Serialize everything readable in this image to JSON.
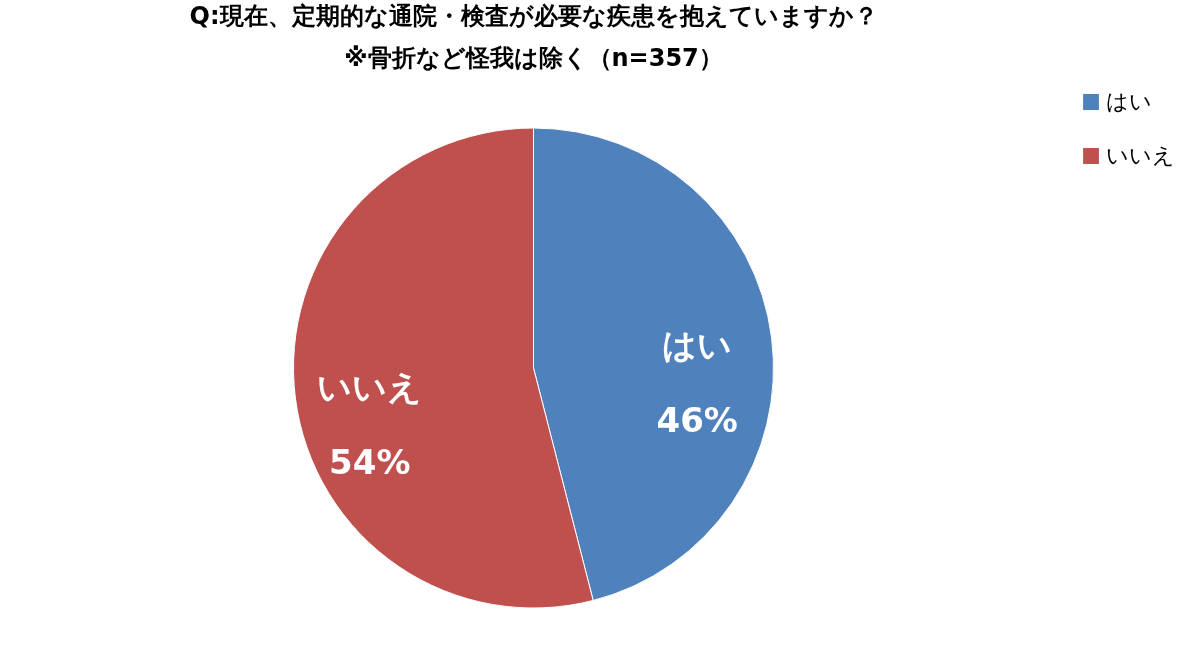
{
  "chart_data": {
    "type": "pie",
    "title": "Q:現在、定期的な通院・検査が必要な疾患を抱えていますか？",
    "subtitle": "※骨折など怪我は除く（n=357）",
    "categories": [
      "はい",
      "いいえ"
    ],
    "values": [
      46,
      54
    ],
    "value_labels": [
      "46%",
      "54%"
    ],
    "colors": [
      "#4f81bd",
      "#c0504d"
    ],
    "legend": "right"
  }
}
